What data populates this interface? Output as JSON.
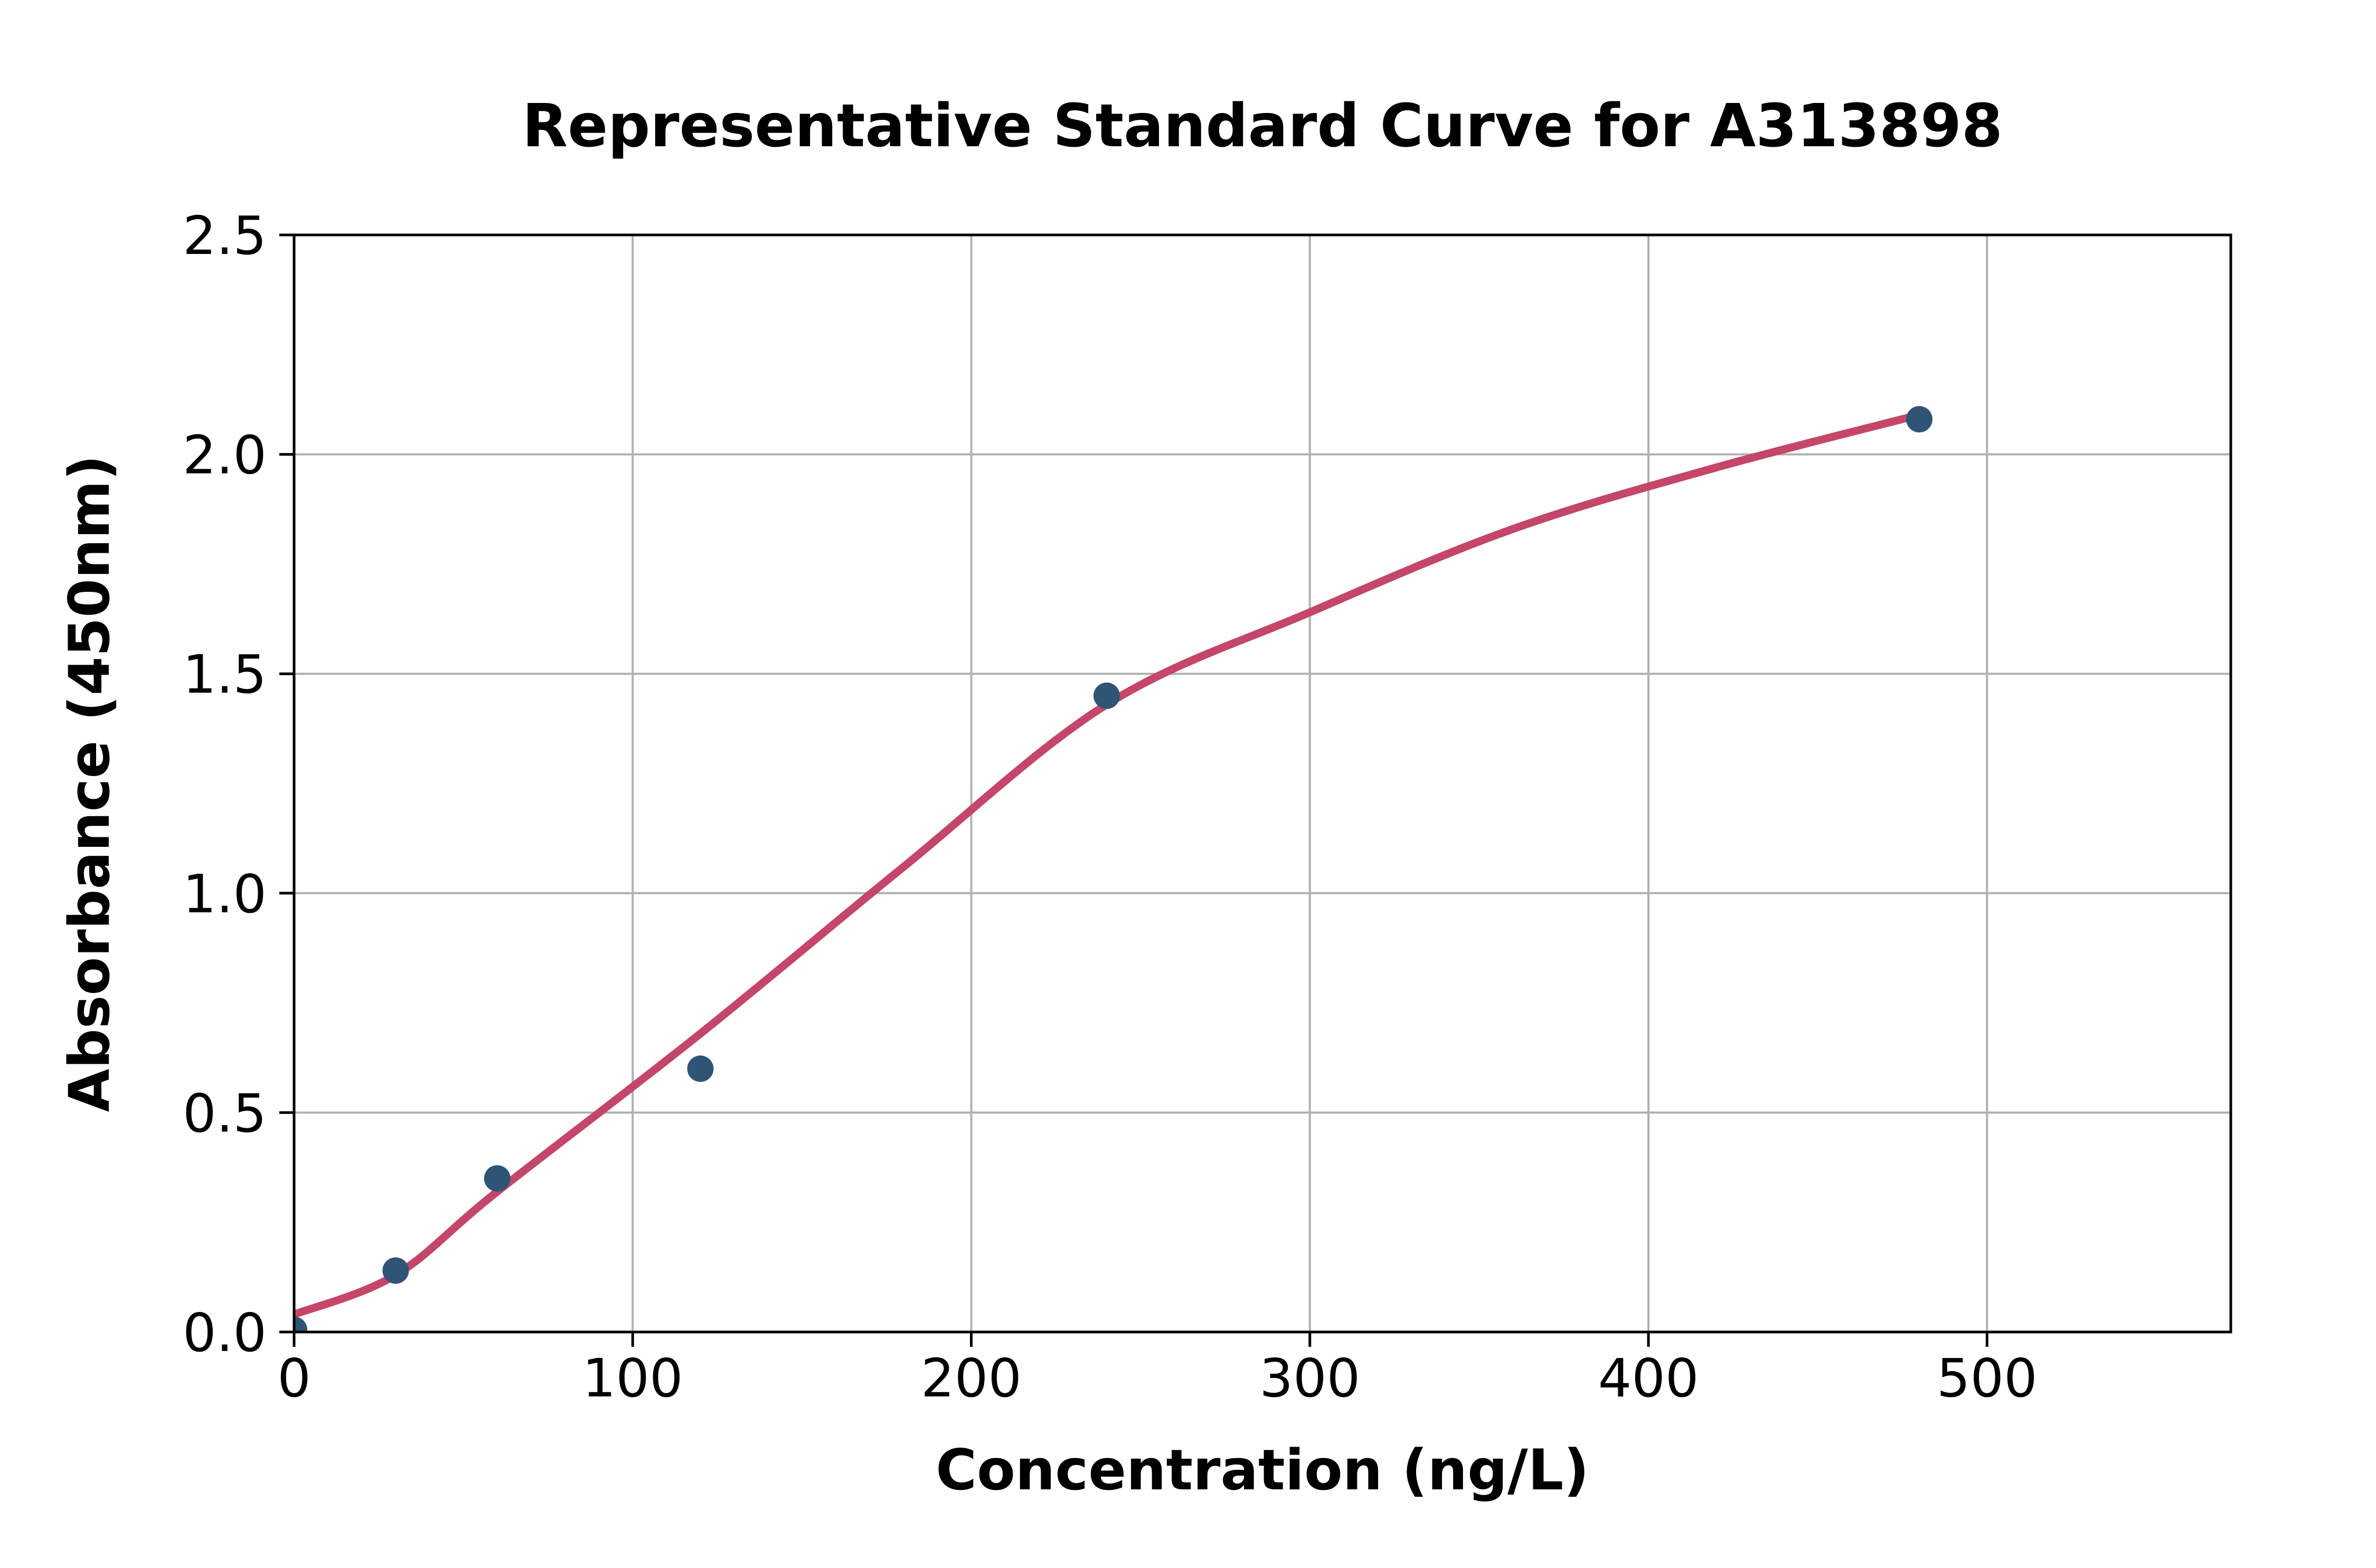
{
  "chart_data": {
    "type": "scatter",
    "title": "Representative Standard Curve for A313898",
    "xlabel": "Concentration (ng/L)",
    "ylabel": "Absorbance (450nm)",
    "xlim": [
      0,
      572
    ],
    "ylim": [
      0,
      2.5
    ],
    "grid": true,
    "legend": "none",
    "x_ticks": [
      {
        "value": 0,
        "label": "0"
      },
      {
        "value": 100,
        "label": "100"
      },
      {
        "value": 200,
        "label": "200"
      },
      {
        "value": 300,
        "label": "300"
      },
      {
        "value": 400,
        "label": "400"
      },
      {
        "value": 500,
        "label": "500"
      }
    ],
    "y_ticks": [
      {
        "value": 0.0,
        "label": "0.0"
      },
      {
        "value": 0.5,
        "label": "0.5"
      },
      {
        "value": 1.0,
        "label": "1.0"
      },
      {
        "value": 1.5,
        "label": "1.5"
      },
      {
        "value": 2.0,
        "label": "2.0"
      },
      {
        "value": 2.5,
        "label": "2.5"
      }
    ],
    "series": [
      {
        "name": "fitted-standard-curve",
        "type": "line",
        "color": "#c4466a",
        "stroke_width": 15,
        "points": [
          [
            0,
            0.04
          ],
          [
            30,
            0.13
          ],
          [
            60,
            0.32
          ],
          [
            120,
            0.68
          ],
          [
            180,
            1.06
          ],
          [
            240,
            1.43
          ],
          [
            300,
            1.64
          ],
          [
            360,
            1.83
          ],
          [
            420,
            1.97
          ],
          [
            480,
            2.09
          ]
        ]
      },
      {
        "name": "standard-data-points",
        "type": "scatter",
        "color": "#2f5475",
        "marker_radius": 25,
        "points": [
          [
            0,
            0.005
          ],
          [
            30,
            0.14
          ],
          [
            60,
            0.35
          ],
          [
            120,
            0.6
          ],
          [
            240,
            1.45
          ],
          [
            480,
            2.08
          ]
        ]
      }
    ],
    "colors": {
      "background": "#ffffff",
      "grid": "#b0b0b0",
      "axis": "#000000",
      "tick_text": "#000000",
      "curve": "#c4466a",
      "marker": "#2f5475"
    }
  }
}
